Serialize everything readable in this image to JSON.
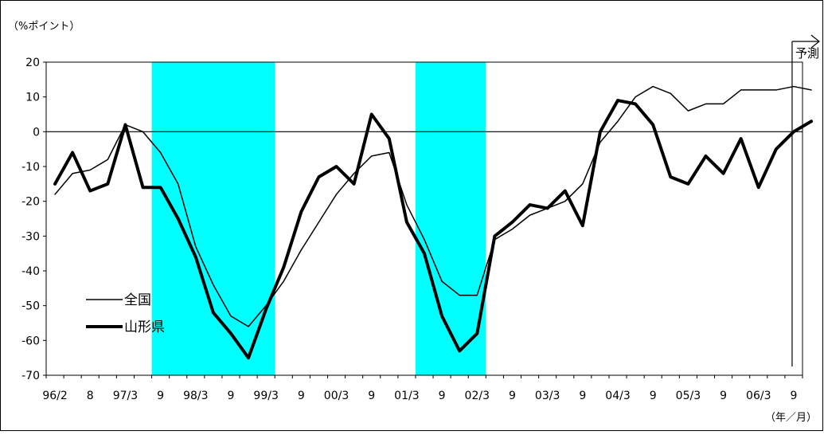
{
  "chart_data": {
    "type": "line",
    "y_unit_label": "（%ポイント）",
    "x_unit_label": "（年／月）",
    "forecast_label": "予測",
    "ylim": [
      -70,
      20
    ],
    "yticks": [
      20,
      10,
      0,
      -10,
      -20,
      -30,
      -40,
      -50,
      -60,
      -70
    ],
    "grid": false,
    "legend_placement": "bottom-left",
    "x_index_range": [
      0,
      42
    ],
    "x_tick_labels": [
      {
        "index": 0,
        "label": "96/2"
      },
      {
        "index": 2,
        "label": "8"
      },
      {
        "index": 4,
        "label": "97/3"
      },
      {
        "index": 6,
        "label": "9"
      },
      {
        "index": 8,
        "label": "98/3"
      },
      {
        "index": 10,
        "label": "9"
      },
      {
        "index": 12,
        "label": "99/3"
      },
      {
        "index": 14,
        "label": "9"
      },
      {
        "index": 16,
        "label": "00/3"
      },
      {
        "index": 18,
        "label": "9"
      },
      {
        "index": 20,
        "label": "01/3"
      },
      {
        "index": 22,
        "label": "9"
      },
      {
        "index": 24,
        "label": "02/3"
      },
      {
        "index": 26,
        "label": "9"
      },
      {
        "index": 28,
        "label": "03/3"
      },
      {
        "index": 30,
        "label": "9"
      },
      {
        "index": 32,
        "label": "04/3"
      },
      {
        "index": 34,
        "label": "9"
      },
      {
        "index": 36,
        "label": "05/3"
      },
      {
        "index": 38,
        "label": "9"
      },
      {
        "index": 40,
        "label": "06/3"
      },
      {
        "index": 42,
        "label": "9"
      }
    ],
    "shaded_ranges": [
      {
        "from": 5.5,
        "to": 12.5,
        "color": "#00ffff"
      },
      {
        "from": 20.5,
        "to": 24.5,
        "color": "#00ffff"
      }
    ],
    "forecast_marker_index": 42,
    "series": [
      {
        "name": "全国",
        "color": "#000000",
        "style": "thin",
        "x": [
          0,
          1,
          2,
          3,
          4,
          5,
          6,
          7,
          8,
          9,
          10,
          11,
          12,
          13,
          14,
          15,
          16,
          17,
          18,
          19,
          20,
          21,
          22,
          23,
          24,
          25,
          26,
          27,
          28,
          29,
          30,
          31,
          32,
          33,
          34,
          35,
          36,
          37,
          38,
          39,
          40,
          41,
          42,
          43
        ],
        "values": [
          -18,
          -12,
          -11,
          -8,
          2,
          0,
          -6,
          -15,
          -33,
          -44,
          -53,
          -56,
          -50,
          -43,
          -34,
          -26,
          -18,
          -12,
          -7,
          -6,
          -21,
          -31,
          -43,
          -47,
          -47,
          -31,
          -28,
          -24,
          -22,
          -20,
          -15,
          -3,
          3,
          10,
          13,
          11,
          6,
          8,
          8,
          12,
          12,
          12,
          13,
          12
        ]
      },
      {
        "name": "山形県",
        "color": "#000000",
        "style": "thick",
        "x": [
          0,
          1,
          2,
          3,
          4,
          5,
          6,
          7,
          8,
          9,
          10,
          11,
          12,
          13,
          14,
          15,
          16,
          17,
          18,
          19,
          20,
          21,
          22,
          23,
          24,
          25,
          26,
          27,
          28,
          29,
          30,
          31,
          32,
          33,
          34,
          35,
          36,
          37,
          38,
          39,
          40,
          41,
          42,
          43
        ],
        "values": [
          -15,
          -6,
          -17,
          -15,
          2,
          -16,
          -16,
          -25,
          -36,
          -52,
          -58,
          -65,
          -51,
          -39,
          -23,
          -13,
          -10,
          -15,
          5,
          -2,
          -26,
          -35,
          -53,
          -63,
          -58,
          -30,
          -26,
          -21,
          -22,
          -17,
          -27,
          0,
          9,
          8,
          2,
          -13,
          -15,
          -7,
          -12,
          -2,
          -16,
          -5,
          0,
          3
        ]
      }
    ]
  }
}
